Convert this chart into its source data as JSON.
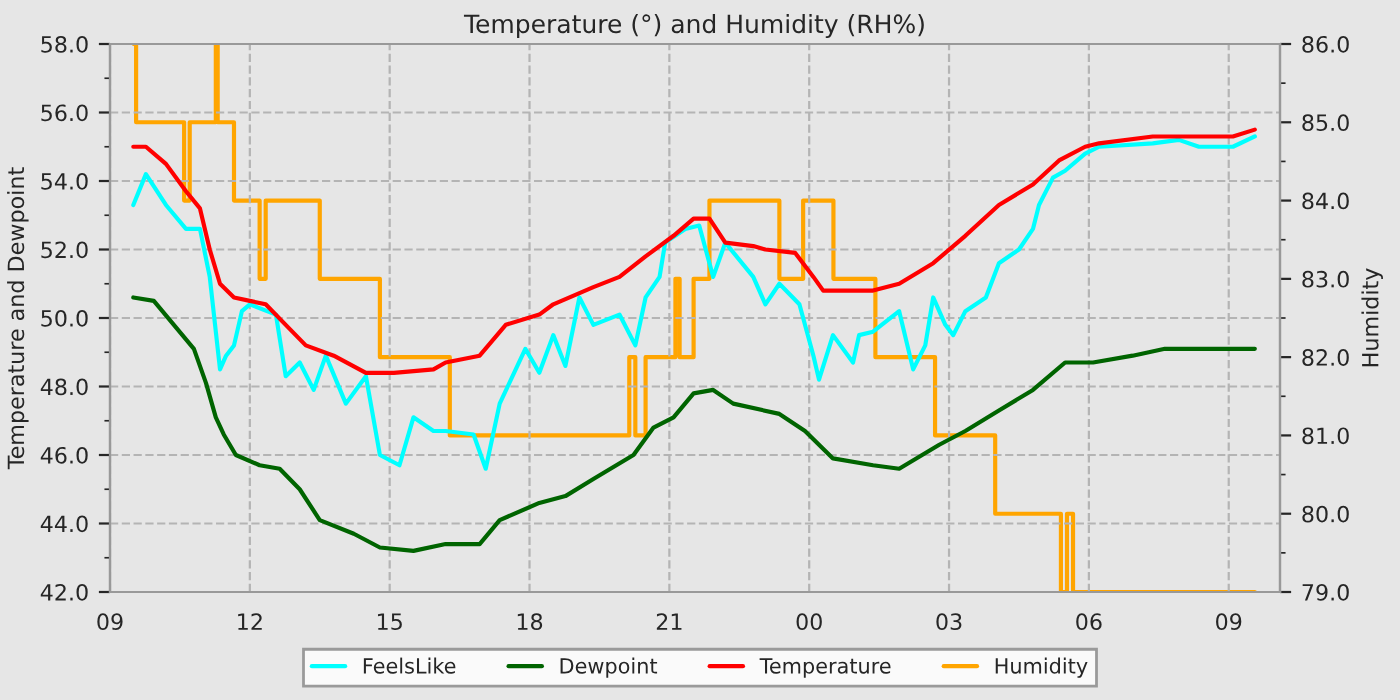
{
  "chart_data": {
    "type": "line",
    "title": "Temperature (°) and Humidity (RH%)",
    "ylabel": "Temperature and Dewpoint",
    "y2label": "Humidity",
    "xlim": [
      9,
      34.1
    ],
    "xticks": [
      {
        "value": 9,
        "label": "09"
      },
      {
        "value": 12,
        "label": "12"
      },
      {
        "value": 15,
        "label": "15"
      },
      {
        "value": 18,
        "label": "18"
      },
      {
        "value": 21,
        "label": "21"
      },
      {
        "value": 24,
        "label": "00"
      },
      {
        "value": 27,
        "label": "03"
      },
      {
        "value": 30,
        "label": "06"
      },
      {
        "value": 33,
        "label": "09"
      }
    ],
    "ylim": [
      42,
      58
    ],
    "yticks": [
      {
        "value": 42,
        "label": "42.0"
      },
      {
        "value": 44,
        "label": "44.0"
      },
      {
        "value": 46,
        "label": "46.0"
      },
      {
        "value": 48,
        "label": "48.0"
      },
      {
        "value": 50,
        "label": "50.0"
      },
      {
        "value": 52,
        "label": "52.0"
      },
      {
        "value": 54,
        "label": "54.0"
      },
      {
        "value": 56,
        "label": "56.0"
      },
      {
        "value": 58,
        "label": "58.0"
      }
    ],
    "y2lim": [
      79,
      86
    ],
    "y2ticks": [
      {
        "value": 79,
        "label": "79.0"
      },
      {
        "value": 80,
        "label": "80.0"
      },
      {
        "value": 81,
        "label": "81.0"
      },
      {
        "value": 82,
        "label": "82.0"
      },
      {
        "value": 83,
        "label": "83.0"
      },
      {
        "value": 84,
        "label": "84.0"
      },
      {
        "value": 85,
        "label": "85.0"
      },
      {
        "value": 86,
        "label": "86.0"
      }
    ],
    "grid": true,
    "legend": "bottom",
    "marker": "none",
    "line_style": "solid",
    "series": [
      {
        "name": "FeelsLike",
        "color": "#00ffff",
        "x": [
          9.5,
          9.77,
          10.2,
          10.63,
          10.93,
          11.14,
          11.36,
          11.49,
          11.66,
          11.83,
          12.0,
          12.56,
          12.77,
          13.07,
          13.37,
          13.63,
          14.06,
          14.49,
          14.79,
          15.21,
          15.51,
          15.94,
          16.2,
          16.8,
          17.06,
          17.36,
          17.91,
          18.21,
          18.51,
          18.77,
          19.07,
          19.37,
          19.93,
          20.27,
          20.49,
          20.79,
          20.91,
          21.34,
          21.64,
          21.94,
          22.2,
          22.8,
          23.06,
          23.36,
          23.79,
          24.09,
          24.21,
          24.51,
          24.94,
          25.07,
          25.37,
          25.93,
          26.23,
          26.49,
          26.66,
          26.92,
          27.09,
          27.35,
          27.79,
          28.07,
          28.5,
          28.8,
          28.93,
          29.23,
          29.49,
          29.92,
          30.22,
          31.37,
          31.93,
          32.36,
          33.09,
          33.56
        ],
        "values": [
          53.3,
          54.2,
          53.3,
          52.6,
          52.6,
          51.2,
          48.5,
          48.9,
          49.2,
          50.2,
          50.4,
          50.1,
          48.3,
          48.7,
          47.9,
          48.9,
          47.5,
          48.3,
          46.0,
          45.7,
          47.1,
          46.7,
          46.7,
          46.6,
          45.6,
          47.5,
          49.1,
          48.4,
          49.5,
          48.6,
          50.6,
          49.8,
          50.1,
          49.2,
          50.6,
          51.2,
          52.2,
          52.6,
          52.7,
          51.2,
          52.2,
          51.2,
          50.4,
          51.0,
          50.4,
          48.9,
          48.2,
          49.5,
          48.7,
          49.5,
          49.6,
          50.2,
          48.5,
          49.2,
          50.6,
          49.8,
          49.5,
          50.2,
          50.6,
          51.6,
          52.0,
          52.6,
          53.3,
          54.1,
          54.3,
          54.8,
          55.0,
          55.1,
          55.2,
          55.0,
          55.0,
          55.3
        ]
      },
      {
        "name": "Dewpoint",
        "color": "#006400",
        "x": [
          9.5,
          9.94,
          10.37,
          10.8,
          11.06,
          11.27,
          11.44,
          11.7,
          12.21,
          12.64,
          13.07,
          13.5,
          14.23,
          14.79,
          15.51,
          16.2,
          16.93,
          17.36,
          18.21,
          18.77,
          19.37,
          20.23,
          20.66,
          21.09,
          21.52,
          21.94,
          22.37,
          23.36,
          23.91,
          24.51,
          25.37,
          25.93,
          26.79,
          27.35,
          28.07,
          28.8,
          29.49,
          30.09,
          30.94,
          31.63,
          33.56
        ],
        "values": [
          50.6,
          50.5,
          49.8,
          49.1,
          48.1,
          47.1,
          46.6,
          46.0,
          45.7,
          45.6,
          45.0,
          44.1,
          43.7,
          43.3,
          43.2,
          43.4,
          43.4,
          44.1,
          44.6,
          44.8,
          45.3,
          46.0,
          46.8,
          47.1,
          47.8,
          47.9,
          47.5,
          47.2,
          46.7,
          45.9,
          45.7,
          45.6,
          46.3,
          46.7,
          47.3,
          47.9,
          48.7,
          48.7,
          48.9,
          49.1,
          49.1
        ]
      },
      {
        "name": "Temperature",
        "color": "#ff0000",
        "x": [
          9.5,
          9.77,
          10.2,
          10.63,
          10.93,
          11.14,
          11.36,
          11.66,
          12.0,
          12.34,
          12.77,
          13.2,
          13.8,
          14.49,
          15.09,
          15.94,
          16.2,
          16.93,
          17.49,
          18.21,
          18.51,
          19.37,
          19.93,
          20.49,
          21.09,
          21.52,
          21.86,
          22.2,
          22.8,
          23.06,
          23.7,
          24.09,
          24.3,
          25.37,
          25.93,
          26.66,
          27.35,
          28.07,
          28.8,
          29.36,
          29.92,
          30.22,
          31.37,
          33.09,
          33.56
        ],
        "values": [
          55.0,
          55.0,
          54.5,
          53.7,
          53.2,
          52.0,
          51.0,
          50.6,
          50.5,
          50.4,
          49.8,
          49.2,
          48.9,
          48.4,
          48.4,
          48.5,
          48.7,
          48.9,
          49.8,
          50.1,
          50.4,
          50.9,
          51.2,
          51.8,
          52.4,
          52.9,
          52.9,
          52.2,
          52.1,
          52.0,
          51.9,
          51.2,
          50.8,
          50.8,
          51.0,
          51.6,
          52.4,
          53.3,
          53.9,
          54.6,
          55.0,
          55.1,
          55.3,
          55.3,
          55.5
        ]
      },
      {
        "name": "Humidity",
        "color": "#ffa500",
        "type": "step",
        "axis": "y2",
        "x": [
          9.51,
          9.56,
          10.59,
          10.71,
          11.27,
          11.31,
          11.66,
          12.21,
          12.34,
          13.5,
          14.79,
          16.29,
          20.14,
          20.27,
          20.49,
          21.13,
          21.22,
          21.52,
          21.86,
          23.36,
          23.87,
          24.52,
          25.42,
          26.7,
          27.99,
          29.4,
          29.53,
          29.66,
          33.56
        ],
        "values": [
          86,
          85,
          84,
          85,
          86,
          85,
          84,
          83,
          84,
          83,
          82,
          81,
          82,
          81,
          82,
          83,
          82,
          83,
          84,
          83,
          84,
          83,
          82,
          81,
          80,
          79,
          80,
          79,
          79
        ]
      }
    ]
  }
}
